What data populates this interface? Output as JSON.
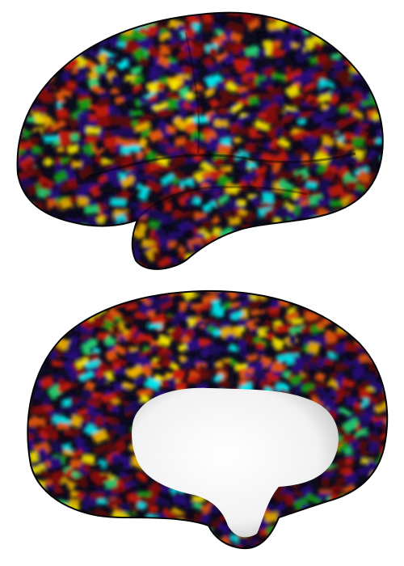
{
  "figure": {
    "panels": [
      {
        "view": "lateral"
      },
      {
        "view": "medial"
      }
    ],
    "colormap": [
      "#0c0a1e",
      "#1e0a5a",
      "#2a1180",
      "#5a0a10",
      "#8c0a08",
      "#c81e08",
      "#e85a08",
      "#f0b400",
      "#f8e600",
      "#18a018",
      "#28d878",
      "#00e8f0"
    ],
    "medial_wall_color": "#ffffff",
    "background": "#ffffff"
  }
}
